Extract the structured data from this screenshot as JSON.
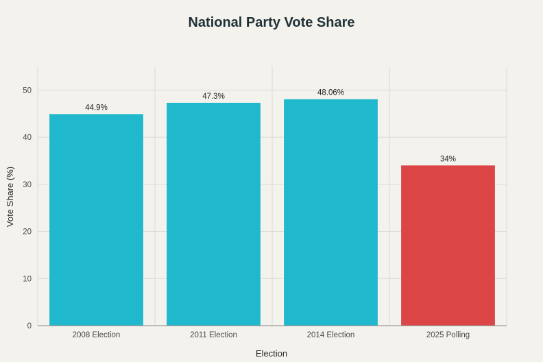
{
  "chart_data": {
    "type": "bar",
    "title": "National Party Vote Share",
    "xlabel": "Election",
    "ylabel": "Vote Share (%)",
    "categories": [
      "2008 Election",
      "2011 Election",
      "2014 Election",
      "2025 Polling"
    ],
    "values": [
      44.9,
      47.3,
      48.06,
      34
    ],
    "data_labels": [
      "44.9%",
      "47.3%",
      "48.06%",
      "34%"
    ],
    "bar_colors": [
      "#1fb8cd",
      "#1fb8cd",
      "#1fb8cd",
      "#db4545"
    ],
    "ylim": [
      0,
      55
    ],
    "yticks": [
      0,
      10,
      20,
      30,
      40,
      50
    ],
    "grid": true
  }
}
